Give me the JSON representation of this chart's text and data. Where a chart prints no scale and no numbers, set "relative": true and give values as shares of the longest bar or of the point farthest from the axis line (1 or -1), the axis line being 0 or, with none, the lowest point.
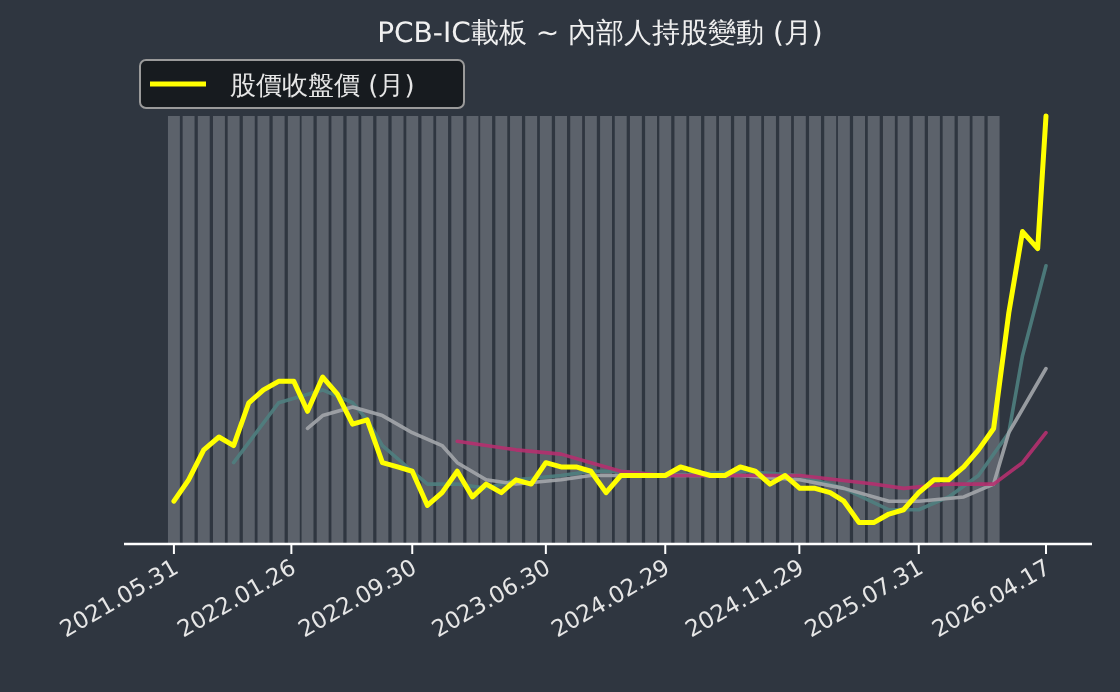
{
  "chart_data": {
    "type": "bar",
    "title": "PCB-IC載板 ~ 內部人持股變動 (月)",
    "relative": true,
    "legend": "top left",
    "xlim": [
      "2021-02-18",
      "2026-07-20"
    ],
    "xticks": [
      {
        "value": "2021-05-31",
        "label": "2021.05.31"
      },
      {
        "value": "2022-01-26",
        "label": "2022.01.26"
      },
      {
        "value": "2022-09-30",
        "label": "2022.09.30"
      },
      {
        "value": "2023-06-30",
        "label": "2023.06.30"
      },
      {
        "value": "2024-02-29",
        "label": "2024.02.29"
      },
      {
        "value": "2024-11-29",
        "label": "2024.11.29"
      },
      {
        "value": "2025-07-31",
        "label": "2025.07.31"
      },
      {
        "value": "2026-04-17",
        "label": "2026.04.17"
      }
    ],
    "series": [
      {
        "color": "#5c626b",
        "x": [
          "2021-05-31",
          "2021-06-30",
          "2021-07-31",
          "2021-08-31",
          "2021-09-30",
          "2021-10-31",
          "2021-11-30",
          "2021-12-31",
          "2022-01-31",
          "2022-02-28",
          "2022-03-31",
          "2022-04-30",
          "2022-05-31",
          "2022-06-30",
          "2022-07-31",
          "2022-08-31",
          "2022-09-30",
          "2022-10-31",
          "2022-11-30",
          "2022-12-31",
          "2023-01-31",
          "2023-02-28",
          "2023-03-31",
          "2023-04-30",
          "2023-05-31",
          "2023-06-30",
          "2023-07-31",
          "2023-08-31",
          "2023-09-30",
          "2023-10-31",
          "2023-11-30",
          "2023-12-31",
          "2024-01-31",
          "2024-02-29",
          "2024-03-31",
          "2024-04-30",
          "2024-05-31",
          "2024-06-30",
          "2024-07-31",
          "2024-08-31",
          "2024-09-30",
          "2024-10-31",
          "2024-11-30",
          "2024-12-31",
          "2025-01-31",
          "2025-02-28",
          "2025-03-31",
          "2025-04-30",
          "2025-05-31",
          "2025-06-30",
          "2025-07-31",
          "2025-08-31",
          "2025-09-30",
          "2025-10-31",
          "2025-11-30",
          "2025-12-31"
        ],
        "values": [
          1,
          1,
          1,
          1,
          1,
          1,
          1,
          1,
          1,
          1,
          1,
          1,
          1,
          1,
          1,
          1,
          1,
          1,
          1,
          1,
          1,
          1,
          1,
          1,
          1,
          1,
          1,
          1,
          1,
          1,
          1,
          1,
          1,
          1,
          1,
          1,
          1,
          1,
          1,
          1,
          1,
          1,
          1,
          1,
          1,
          1,
          1,
          1,
          1,
          1,
          1,
          1,
          1,
          1,
          1,
          1
        ]
      },
      {
        "type": "line",
        "color": "#4f7f80",
        "x": [
          "2021-09-30",
          "2021-12-31",
          "2022-03-31",
          "2022-05-31",
          "2022-06-30",
          "2022-07-31",
          "2022-09-30",
          "2022-10-31",
          "2022-12-31",
          "2023-02-28",
          "2023-04-30",
          "2023-07-31",
          "2023-09-30",
          "2023-11-30",
          "2024-02-29",
          "2024-07-31",
          "2024-11-30",
          "2025-02-28",
          "2025-05-31",
          "2025-07-31",
          "2025-09-30",
          "2025-11-30",
          "2026-01-31",
          "2026-02-28",
          "2026-04-17"
        ],
        "values": [
          0.19,
          0.33,
          0.36,
          0.33,
          0.29,
          0.23,
          0.17,
          0.14,
          0.14,
          0.13,
          0.15,
          0.16,
          0.17,
          0.17,
          0.16,
          0.17,
          0.16,
          0.13,
          0.08,
          0.08,
          0.11,
          0.16,
          0.26,
          0.44,
          0.65
        ]
      },
      {
        "type": "line",
        "color": "#a3a6ab",
        "x": [
          "2022-02-28",
          "2022-03-31",
          "2022-05-31",
          "2022-07-31",
          "2022-09-30",
          "2022-11-30",
          "2022-12-31",
          "2023-02-28",
          "2023-04-30",
          "2023-07-31",
          "2023-09-30",
          "2023-11-30",
          "2024-02-29",
          "2024-07-31",
          "2024-11-30",
          "2025-02-28",
          "2025-05-31",
          "2025-07-31",
          "2025-10-31",
          "2025-12-31",
          "2026-01-31",
          "2026-04-17"
        ],
        "values": [
          0.27,
          0.3,
          0.32,
          0.3,
          0.26,
          0.23,
          0.19,
          0.15,
          0.14,
          0.15,
          0.16,
          0.16,
          0.16,
          0.16,
          0.15,
          0.13,
          0.1,
          0.1,
          0.11,
          0.14,
          0.26,
          0.41
        ]
      },
      {
        "type": "line",
        "color": "#b5306f",
        "x": [
          "2022-12-31",
          "2023-02-28",
          "2023-04-30",
          "2023-07-31",
          "2023-09-30",
          "2023-11-30",
          "2024-02-29",
          "2024-07-31",
          "2024-11-30",
          "2025-04-30",
          "2025-06-30",
          "2025-09-30",
          "2025-12-31",
          "2026-02-28",
          "2026-04-17"
        ],
        "values": [
          0.24,
          0.23,
          0.22,
          0.21,
          0.19,
          0.17,
          0.16,
          0.16,
          0.16,
          0.14,
          0.13,
          0.14,
          0.14,
          0.19,
          0.26
        ]
      },
      {
        "type": "line",
        "name": "股價收盤價 (月)",
        "color": "#ffff00",
        "x": [
          "2021-05-31",
          "2021-06-30",
          "2021-07-31",
          "2021-08-31",
          "2021-09-30",
          "2021-10-31",
          "2021-11-30",
          "2021-12-31",
          "2022-01-31",
          "2022-02-28",
          "2022-03-31",
          "2022-04-30",
          "2022-05-31",
          "2022-06-30",
          "2022-07-31",
          "2022-08-31",
          "2022-09-30",
          "2022-10-31",
          "2022-11-30",
          "2022-12-31",
          "2023-01-31",
          "2023-02-28",
          "2023-03-31",
          "2023-04-30",
          "2023-05-31",
          "2023-06-30",
          "2023-07-31",
          "2023-08-31",
          "2023-09-30",
          "2023-10-31",
          "2023-11-30",
          "2023-12-31",
          "2024-01-31",
          "2024-02-29",
          "2024-03-31",
          "2024-04-30",
          "2024-05-31",
          "2024-06-30",
          "2024-07-31",
          "2024-08-31",
          "2024-09-30",
          "2024-10-31",
          "2024-11-30",
          "2024-12-31",
          "2025-01-31",
          "2025-02-28",
          "2025-03-31",
          "2025-04-30",
          "2025-05-31",
          "2025-06-30",
          "2025-07-31",
          "2025-08-31",
          "2025-09-30",
          "2025-10-31",
          "2025-11-30",
          "2025-12-31",
          "2026-01-31",
          "2026-02-28",
          "2026-03-31",
          "2026-04-17"
        ],
        "values": [
          0.1,
          0.15,
          0.22,
          0.25,
          0.23,
          0.33,
          0.36,
          0.38,
          0.38,
          0.31,
          0.39,
          0.35,
          0.28,
          0.29,
          0.19,
          0.18,
          0.17,
          0.09,
          0.12,
          0.17,
          0.11,
          0.14,
          0.12,
          0.15,
          0.14,
          0.19,
          0.18,
          0.18,
          0.17,
          0.12,
          0.16,
          0.16,
          0.16,
          0.16,
          0.18,
          0.17,
          0.16,
          0.16,
          0.18,
          0.17,
          0.14,
          0.16,
          0.13,
          0.13,
          0.12,
          0.1,
          0.05,
          0.05,
          0.07,
          0.08,
          0.12,
          0.15,
          0.15,
          0.18,
          0.22,
          0.27,
          0.54,
          0.73,
          0.69,
          1.0
        ]
      }
    ]
  }
}
